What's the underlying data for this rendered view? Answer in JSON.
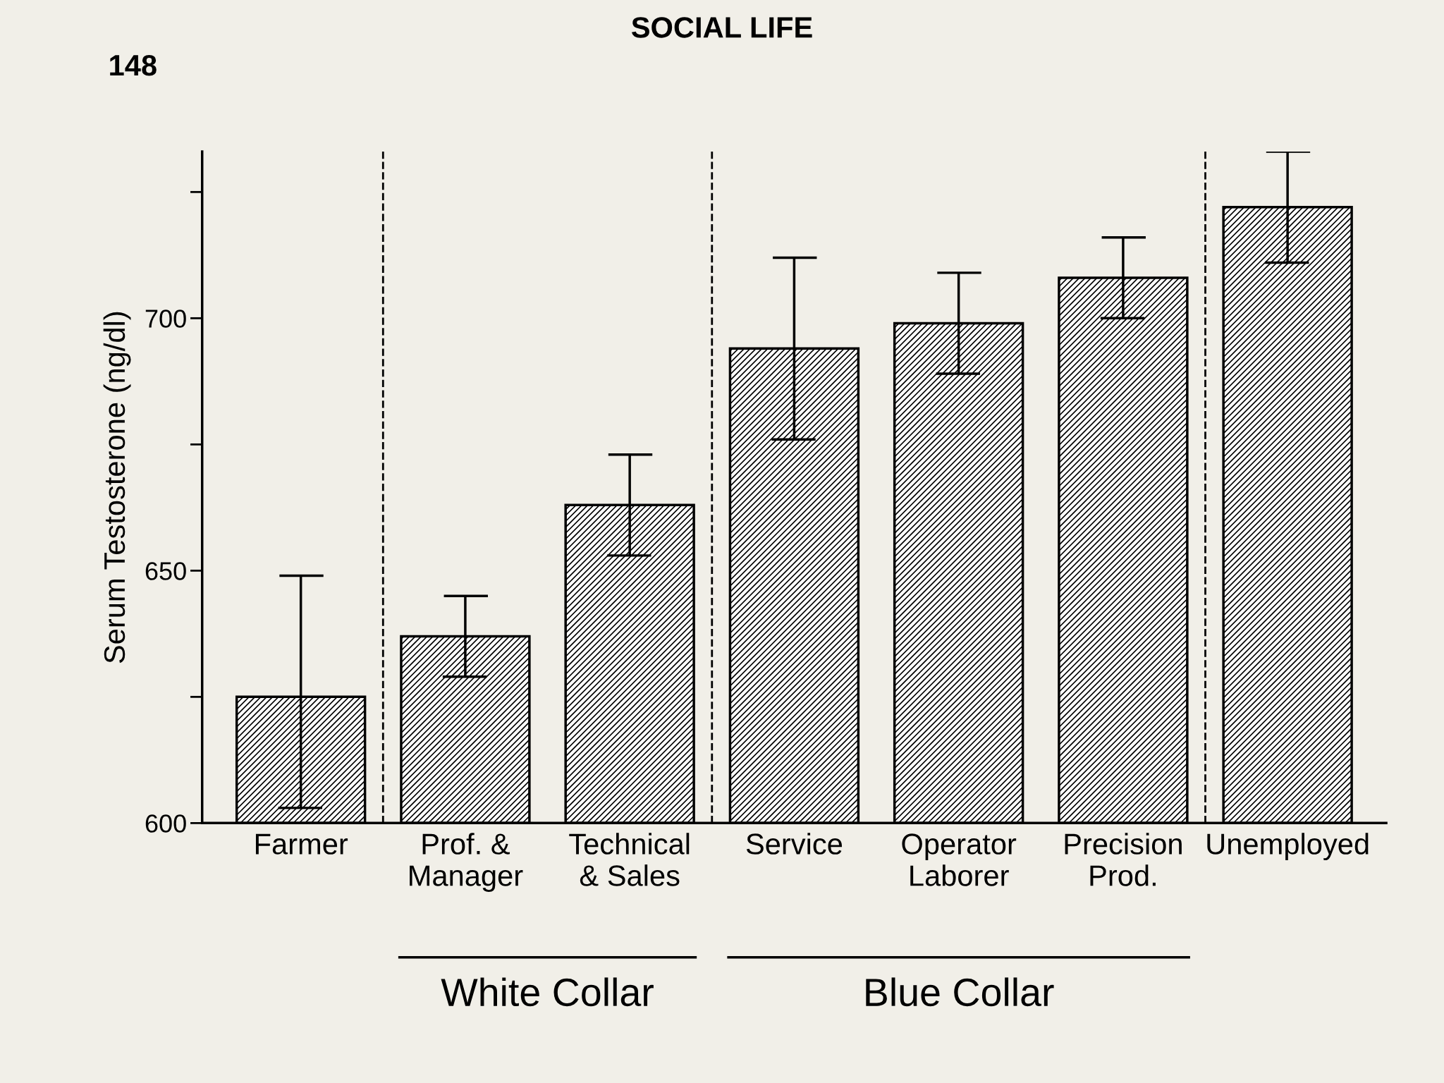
{
  "chart_data": {
    "type": "bar",
    "ylabel": "Serum Testosterone (ng/dl)",
    "categories": [
      "Farmer",
      "Prof. &\nManager",
      "Technical\n& Sales",
      "Service",
      "Operator\nLaborer",
      "Precision\nProd.",
      "Unemployed"
    ],
    "values": [
      625,
      637,
      663,
      694,
      699,
      708,
      722
    ],
    "errors": [
      [
        603,
        649
      ],
      8,
      10,
      18,
      10,
      8,
      11
    ],
    "color": "#000000",
    "ylim": [
      600,
      733
    ],
    "yticks": [
      600,
      650,
      700
    ],
    "annotations": [
      "SOCIAL LIFE",
      "148",
      "White Collar",
      "Blue Collar"
    ],
    "grid": false,
    "legend": false
  }
}
